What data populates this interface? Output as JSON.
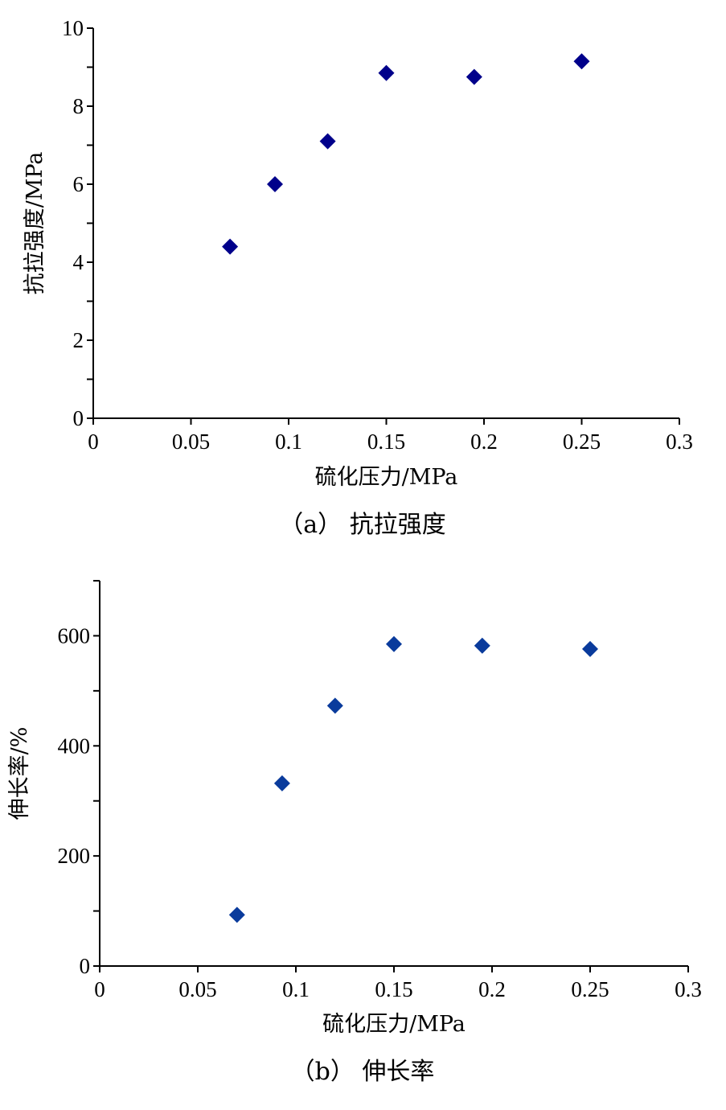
{
  "chart_data": [
    {
      "type": "scatter",
      "xlabel": "硫化压力/MPa",
      "ylabel": "抗拉强度/MPa",
      "caption": "（a）  抗拉强度",
      "xlim": [
        0,
        0.3
      ],
      "ylim": [
        0,
        10
      ],
      "x_ticks": [
        0,
        0.05,
        0.1,
        0.15,
        0.2,
        0.25,
        0.3
      ],
      "x_tick_labels": [
        "0",
        "0.05",
        "0.1",
        "0.15",
        "0.2",
        "0.25",
        "0.3"
      ],
      "y_ticks": [
        0,
        2,
        4,
        6,
        8,
        10
      ],
      "y_tick_labels": [
        "0",
        "2",
        "4",
        "6",
        "8",
        "10"
      ],
      "y_minor_ticks": [
        1,
        3,
        5,
        7,
        9
      ],
      "marker": "diamond",
      "color": "#00008b",
      "points": [
        {
          "x": 0.07,
          "y": 4.4
        },
        {
          "x": 0.093,
          "y": 6.0
        },
        {
          "x": 0.12,
          "y": 7.1
        },
        {
          "x": 0.15,
          "y": 8.85
        },
        {
          "x": 0.195,
          "y": 8.75
        },
        {
          "x": 0.25,
          "y": 9.15
        }
      ],
      "grid": false
    },
    {
      "type": "scatter",
      "xlabel": "硫化压力/MPa",
      "ylabel": "伸长率/%",
      "caption": "（b）  伸长率",
      "xlim": [
        0,
        0.3
      ],
      "ylim": [
        0,
        700
      ],
      "x_ticks": [
        0,
        0.05,
        0.1,
        0.15,
        0.2,
        0.25,
        0.3
      ],
      "x_tick_labels": [
        "0",
        "0.05",
        "0.1",
        "0.15",
        "0.2",
        "0.25",
        "0.3"
      ],
      "y_ticks": [
        0,
        200,
        400,
        600
      ],
      "y_tick_labels": [
        "0",
        "200",
        "400",
        "600"
      ],
      "y_minor_ticks": [
        100,
        300,
        500,
        700
      ],
      "marker": "diamond",
      "color": "#0a3b9c",
      "points": [
        {
          "x": 0.07,
          "y": 93
        },
        {
          "x": 0.093,
          "y": 332
        },
        {
          "x": 0.12,
          "y": 473
        },
        {
          "x": 0.15,
          "y": 585
        },
        {
          "x": 0.195,
          "y": 582
        },
        {
          "x": 0.25,
          "y": 576
        }
      ],
      "grid": false
    }
  ]
}
